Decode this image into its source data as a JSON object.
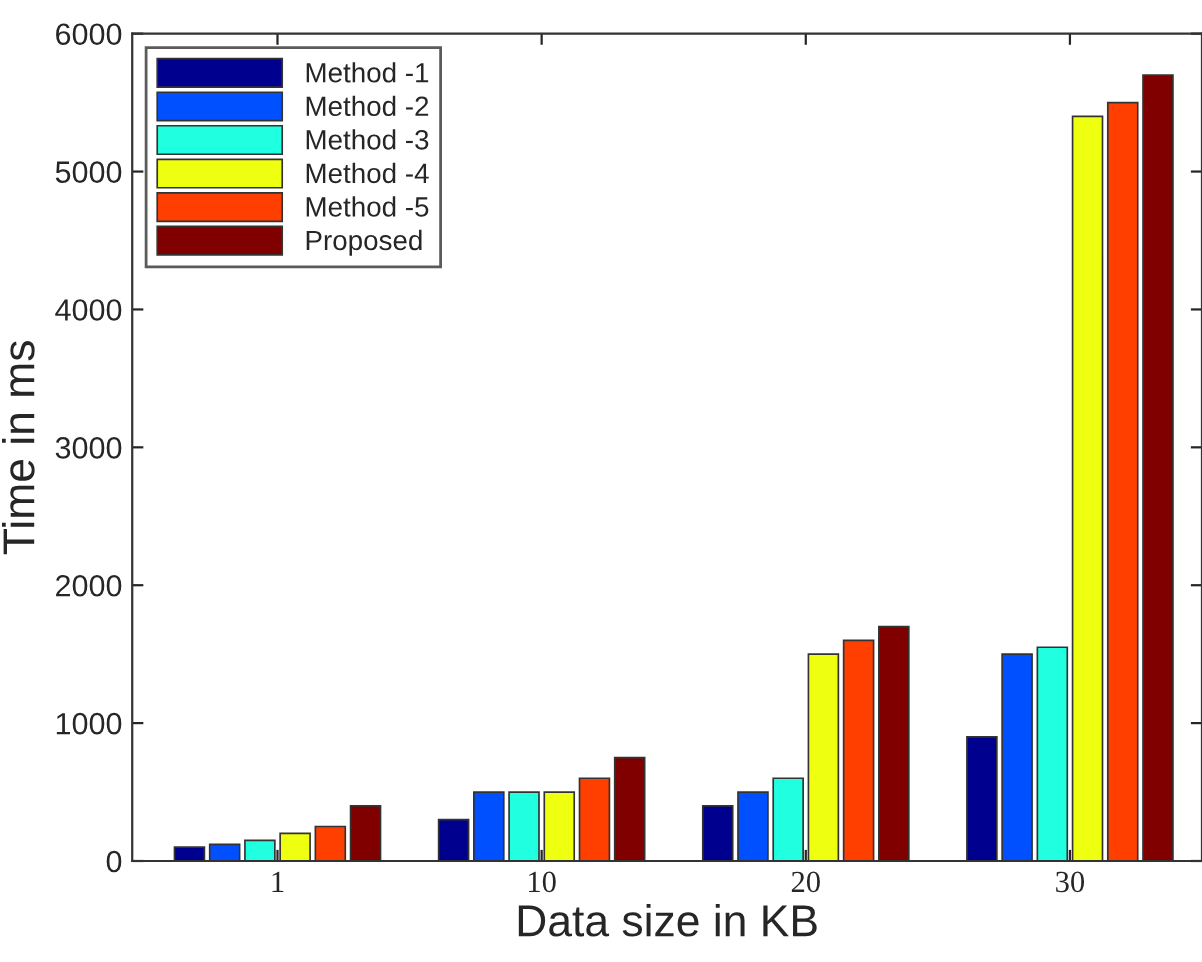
{
  "chart_data": {
    "type": "bar",
    "xlabel": "Data size in KB",
    "ylabel": "Time in ms",
    "categories": [
      "1",
      "10",
      "20",
      "30"
    ],
    "series": [
      {
        "name": "Method -1",
        "color": "#00008f",
        "values": [
          100,
          300,
          400,
          900
        ]
      },
      {
        "name": "Method -2",
        "color": "#0050ff",
        "values": [
          120,
          500,
          500,
          1500
        ]
      },
      {
        "name": "Method -3",
        "color": "#20ffdf",
        "values": [
          150,
          500,
          600,
          1550
        ]
      },
      {
        "name": "Method -4",
        "color": "#efff10",
        "values": [
          200,
          500,
          1500,
          5400
        ]
      },
      {
        "name": "Method -5",
        "color": "#ff3f00",
        "values": [
          250,
          600,
          1600,
          5500
        ]
      },
      {
        "name": "Proposed",
        "color": "#800000",
        "values": [
          400,
          750,
          1700,
          5700
        ]
      }
    ],
    "ylim": [
      0,
      6000
    ],
    "yticks": [
      0,
      1000,
      2000,
      3000,
      4000,
      5000,
      6000
    ],
    "grid": false,
    "legend": "top left"
  }
}
